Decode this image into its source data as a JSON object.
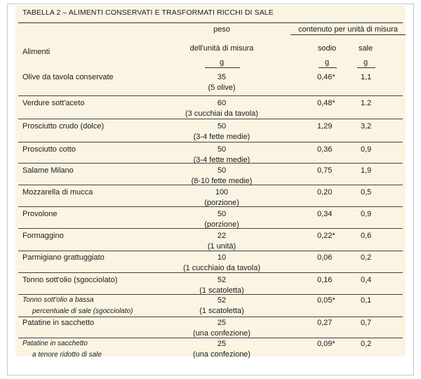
{
  "title": "TABELLA 2 – ALIMENTI CONSERVATI E TRASFORMATI RICCHI DI SALE",
  "headers": {
    "food": "Alimenti",
    "weight_line1": "peso",
    "weight_line2": "dell'unità di misura",
    "weight_unit": "g",
    "content_group": "contenuto per unità di misura",
    "sodium": "sodio",
    "sodium_unit": "g",
    "salt": "sale",
    "salt_unit": "g"
  },
  "rows": [
    {
      "food": "Olive da tavola conservate",
      "food2": "",
      "italic": false,
      "weight": "35",
      "unit": "(5 olive)",
      "sodium": "0,46*",
      "salt": "1,1"
    },
    {
      "food": "Verdure sott'aceto",
      "food2": "",
      "italic": false,
      "weight": "60",
      "unit": "(3 cucchiai da tavola)",
      "sodium": "0,48*",
      "salt": "1.2"
    },
    {
      "food": "Prosciutto crudo (dolce)",
      "food2": "",
      "italic": false,
      "weight": "50",
      "unit": "(3-4 fette medie)",
      "sodium": "1,29",
      "salt": "3,2"
    },
    {
      "food": "Prosciutto cotto",
      "food2": "",
      "italic": false,
      "weight": "50",
      "unit": "(3-4 fette medie)",
      "sodium": "0,36",
      "salt": "0,9"
    },
    {
      "food": "Salame Milano",
      "food2": "",
      "italic": false,
      "weight": "50",
      "unit": "(8-10 fette medie)",
      "sodium": "0,75",
      "salt": "1,9"
    },
    {
      "food": "Mozzarella di mucca",
      "food2": "",
      "italic": false,
      "weight": "100",
      "unit": "(porzione)",
      "sodium": "0,20",
      "salt": "0,5"
    },
    {
      "food": "Provolone",
      "food2": "",
      "italic": false,
      "weight": "50",
      "unit": "(porzione)",
      "sodium": "0,34",
      "salt": "0,9"
    },
    {
      "food": "Formaggino",
      "food2": "",
      "italic": false,
      "weight": "22",
      "unit": "(1 unità)",
      "sodium": "0,22*",
      "salt": "0,6"
    },
    {
      "food": "Parmigiano grattuggiato",
      "food2": "",
      "italic": false,
      "weight": "10",
      "unit": "(1 cucchiaio da tavola)",
      "sodium": "0,06",
      "salt": "0,2"
    },
    {
      "food": "Tonno sott'olio (sgocciolato)",
      "food2": "",
      "italic": false,
      "weight": "52",
      "unit": "(1 scatoletta)",
      "sodium": "0,16",
      "salt": "0,4"
    },
    {
      "food": "Tonno sott'olio a bassa",
      "food2": "percentuale di sale (sgocciolato)",
      "italic": true,
      "weight": "52",
      "unit": "(1 scatoletta)",
      "sodium": "0,05*",
      "salt": "0,1"
    },
    {
      "food": "Patatine in sacchetto",
      "food2": "",
      "italic": false,
      "weight": "25",
      "unit": "(una confezione)",
      "sodium": "0,27",
      "salt": "0,7"
    },
    {
      "food": "Patatine in sacchetto",
      "food2": "a tenore ridotto di sale",
      "italic": true,
      "weight": "25",
      "unit": "(una confezione)",
      "sodium": "0,09*",
      "salt": "0,2"
    }
  ]
}
